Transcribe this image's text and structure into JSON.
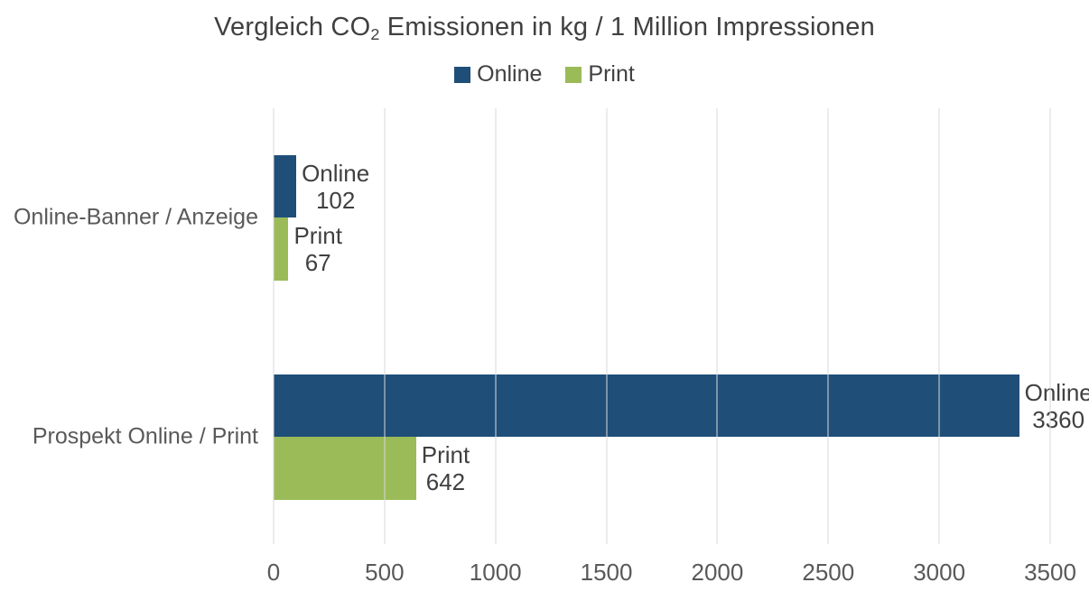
{
  "title_parts": {
    "pre": "Vergleich CO",
    "sub": "2",
    "post": " Emissionen in kg / 1 Million Impressionen"
  },
  "chart_data": {
    "type": "bar",
    "orientation": "horizontal",
    "title": "Vergleich CO2 Emissionen in kg / 1 Million Impressionen",
    "categories": [
      "Online-Banner / Anzeige",
      "Prospekt Online / Print"
    ],
    "series": [
      {
        "name": "Online",
        "color": "#1F4E79",
        "values": [
          102,
          3360
        ]
      },
      {
        "name": "Print",
        "color": "#9BBB59",
        "values": [
          67,
          642
        ]
      }
    ],
    "xlim": [
      0,
      3500
    ],
    "xticks": [
      0,
      500,
      1000,
      1500,
      2000,
      2500,
      3000,
      3500
    ],
    "grid": "vertical",
    "gridline_color": "#D9D9D9",
    "axis_text_color": "#595959",
    "label_text_color": "#404040",
    "legend_position": "top",
    "background": "#FFFFFF"
  }
}
